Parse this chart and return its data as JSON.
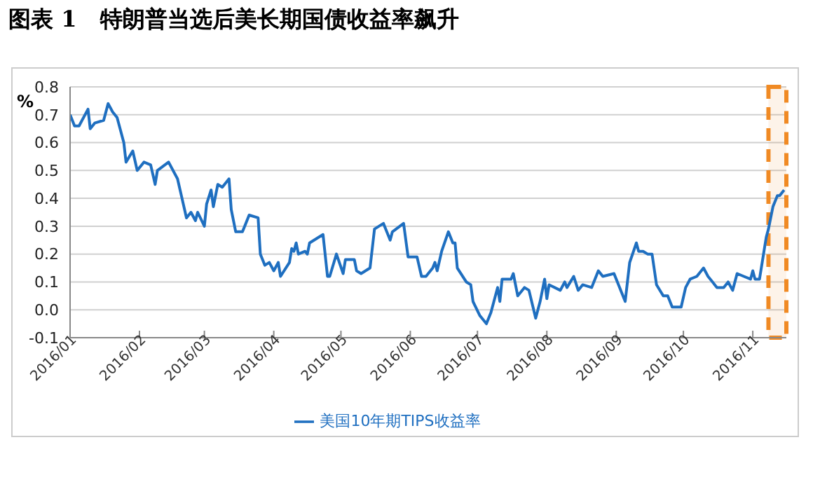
{
  "chart_data": {
    "type": "line",
    "title": "图表 1   特朗普当选后美长期国债收益率飙升",
    "ylabel": "%",
    "x": [
      "2016-01-01",
      "2016-01-03",
      "2016-01-05",
      "2016-01-09",
      "2016-01-10",
      "2016-01-12",
      "2016-01-16",
      "2016-01-18",
      "2016-01-20",
      "2016-01-22",
      "2016-01-25",
      "2016-01-26",
      "2016-01-29",
      "2016-01-31",
      "2016-02-03",
      "2016-02-06",
      "2016-02-08",
      "2016-02-09",
      "2016-02-14",
      "2016-02-18",
      "2016-02-20",
      "2016-02-22",
      "2016-02-24",
      "2016-02-26",
      "2016-02-27",
      "2016-03-01",
      "2016-03-02",
      "2016-03-04",
      "2016-03-05",
      "2016-03-07",
      "2016-03-09",
      "2016-03-11",
      "2016-03-12",
      "2016-03-13",
      "2016-03-15",
      "2016-03-18",
      "2016-03-19",
      "2016-03-21",
      "2016-03-25",
      "2016-03-26",
      "2016-03-28",
      "2016-03-30",
      "2016-04-01",
      "2016-04-03",
      "2016-04-04",
      "2016-04-08",
      "2016-04-09",
      "2016-04-10",
      "2016-04-11",
      "2016-04-12",
      "2016-04-15",
      "2016-04-16",
      "2016-04-17",
      "2016-04-23",
      "2016-04-25",
      "2016-04-26",
      "2016-04-29",
      "2016-05-02",
      "2016-05-03",
      "2016-05-07",
      "2016-05-08",
      "2016-05-10",
      "2016-05-14",
      "2016-05-16",
      "2016-05-20",
      "2016-05-23",
      "2016-05-24",
      "2016-05-29",
      "2016-05-31",
      "2016-06-02",
      "2016-06-04",
      "2016-06-06",
      "2016-06-08",
      "2016-06-11",
      "2016-06-12",
      "2016-06-13",
      "2016-06-15",
      "2016-06-18",
      "2016-06-20",
      "2016-06-21",
      "2016-06-22",
      "2016-06-26",
      "2016-06-28",
      "2016-06-29",
      "2016-07-02",
      "2016-07-05",
      "2016-07-07",
      "2016-07-10",
      "2016-07-11",
      "2016-07-12",
      "2016-07-16",
      "2016-07-17",
      "2016-07-19",
      "2016-07-22",
      "2016-07-24",
      "2016-07-27",
      "2016-07-29",
      "2016-07-31",
      "2016-08-01",
      "2016-08-02",
      "2016-08-07",
      "2016-08-09",
      "2016-08-10",
      "2016-08-13",
      "2016-08-15",
      "2016-08-17",
      "2016-08-21",
      "2016-08-24",
      "2016-08-26",
      "2016-08-31",
      "2016-09-05",
      "2016-09-07",
      "2016-09-10",
      "2016-09-11",
      "2016-09-13",
      "2016-09-15",
      "2016-09-17",
      "2016-09-19",
      "2016-09-22",
      "2016-09-24",
      "2016-09-26",
      "2016-09-30",
      "2016-10-02",
      "2016-10-04",
      "2016-10-07",
      "2016-10-10",
      "2016-10-12",
      "2016-10-16",
      "2016-10-19",
      "2016-10-21",
      "2016-10-23",
      "2016-10-25",
      "2016-10-28",
      "2016-10-31",
      "2016-11-01",
      "2016-11-02",
      "2016-11-04",
      "2016-11-05",
      "2016-11-07",
      "2016-11-08",
      "2016-11-10",
      "2016-11-12",
      "2016-11-13",
      "2016-11-14",
      "2016-11-15"
    ],
    "series": [
      {
        "name": "美国10年期TIPS收益率",
        "color": "#1f6fc0",
        "values": [
          0.7,
          0.66,
          0.66,
          0.72,
          0.65,
          0.67,
          0.68,
          0.74,
          0.71,
          0.69,
          0.6,
          0.53,
          0.57,
          0.5,
          0.53,
          0.52,
          0.45,
          0.5,
          0.53,
          0.47,
          0.4,
          0.33,
          0.35,
          0.32,
          0.35,
          0.3,
          0.38,
          0.43,
          0.37,
          0.45,
          0.44,
          0.46,
          0.47,
          0.36,
          0.28,
          0.28,
          0.3,
          0.34,
          0.33,
          0.2,
          0.16,
          0.17,
          0.14,
          0.17,
          0.12,
          0.17,
          0.22,
          0.21,
          0.24,
          0.2,
          0.21,
          0.2,
          0.24,
          0.27,
          0.12,
          0.12,
          0.2,
          0.13,
          0.18,
          0.18,
          0.14,
          0.13,
          0.15,
          0.29,
          0.31,
          0.25,
          0.28,
          0.31,
          0.19,
          0.19,
          0.19,
          0.12,
          0.12,
          0.15,
          0.17,
          0.14,
          0.21,
          0.28,
          0.24,
          0.24,
          0.15,
          0.1,
          0.09,
          0.03,
          -0.02,
          -0.05,
          -0.01,
          0.08,
          0.03,
          0.11,
          0.11,
          0.13,
          0.05,
          0.08,
          0.07,
          -0.03,
          0.03,
          0.11,
          0.04,
          0.09,
          0.07,
          0.1,
          0.08,
          0.12,
          0.07,
          0.09,
          0.08,
          0.14,
          0.12,
          0.13,
          0.03,
          0.17,
          0.24,
          0.21,
          0.21,
          0.2,
          0.2,
          0.09,
          0.05,
          0.05,
          0.01,
          0.01,
          0.08,
          0.11,
          0.12,
          0.15,
          0.12,
          0.08,
          0.08,
          0.1,
          0.07,
          0.13,
          0.12,
          0.11,
          0.14,
          0.11,
          0.11,
          0.16,
          0.26,
          0.29,
          0.37,
          0.41,
          0.41,
          0.42,
          0.43
        ]
      }
    ],
    "xlim": [
      "2016-01-01",
      "2016-11-16"
    ],
    "xticks": [
      {
        "value": "2016-01",
        "label": "2016/01"
      },
      {
        "value": "2016-02",
        "label": "2016/02"
      },
      {
        "value": "2016-03",
        "label": "2016/03"
      },
      {
        "value": "2016-04",
        "label": "2016/04"
      },
      {
        "value": "2016-05",
        "label": "2016/05"
      },
      {
        "value": "2016-06",
        "label": "2016/06"
      },
      {
        "value": "2016-07",
        "label": "2016/07"
      },
      {
        "value": "2016-08",
        "label": "2016/08"
      },
      {
        "value": "2016-09",
        "label": "2016/09"
      },
      {
        "value": "2016-10",
        "label": "2016/10"
      },
      {
        "value": "2016-11",
        "label": "2016/11"
      }
    ],
    "ylim": [
      -0.1,
      0.8
    ],
    "yticks": [
      {
        "value": -0.1,
        "label": "-0.1"
      },
      {
        "value": 0,
        "label": "0.0"
      },
      {
        "value": 0.1,
        "label": "0.1"
      },
      {
        "value": 0.2,
        "label": "0.2"
      },
      {
        "value": 0.3,
        "label": "0.3"
      },
      {
        "value": 0.4,
        "label": "0.4"
      },
      {
        "value": 0.5,
        "label": "0.5"
      },
      {
        "value": 0.6,
        "label": "0.6"
      },
      {
        "value": 0.7,
        "label": "0.7"
      },
      {
        "value": 0.8,
        "label": "0.8"
      }
    ],
    "bands": [
      {
        "axis": "x",
        "from": "2016-11-08",
        "to": "2016-11-16",
        "color": "#f08a24"
      }
    ],
    "grid": "y",
    "legend": "bottom",
    "marker": "none",
    "line_style": "solid"
  }
}
